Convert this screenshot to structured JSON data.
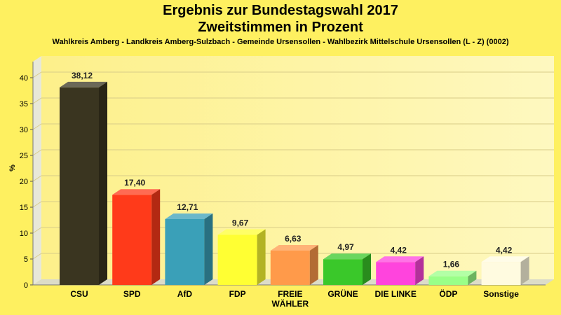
{
  "chart_data": {
    "type": "bar",
    "title": "Ergebnis zur Bundestagswahl 2017",
    "subtitle": "Zweitstimmen in Prozent",
    "caption": "Wahlkreis Amberg - Landkreis Amberg-Sulzbach - Gemeinde Ursensollen - Wahlbezirk Mittelschule Ursensollen (L - Z) (0002)",
    "ylabel": "%",
    "xlabel": "",
    "ylim": [
      0,
      40
    ],
    "yticks": [
      0,
      5,
      10,
      15,
      20,
      25,
      30,
      35,
      40
    ],
    "grid": true,
    "categories": [
      "CSU",
      "SPD",
      "AfD",
      "FDP",
      "FREIE WÄHLER",
      "GRÜNE",
      "DIE LINKE",
      "ÖDP",
      "Sonstige"
    ],
    "values": [
      38.12,
      17.4,
      12.71,
      9.67,
      6.63,
      4.97,
      4.42,
      1.66,
      4.42
    ],
    "value_labels": [
      "38,12",
      "17,40",
      "12,71",
      "9,67",
      "6,63",
      "4,97",
      "4,42",
      "1,66",
      "4,42"
    ],
    "colors": [
      "#3a3520",
      "#ff3a1a",
      "#3aa0b8",
      "#ffff33",
      "#ff9a4a",
      "#3ac82a",
      "#ff44dd",
      "#99ff88",
      "#fffbe0"
    ]
  }
}
